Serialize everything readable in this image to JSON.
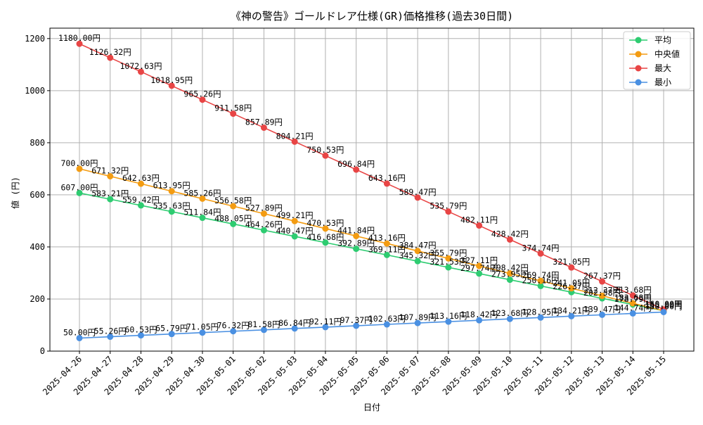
{
  "chart_data": {
    "type": "line",
    "title": "《神の警告》ゴールドレア仕様(GR)価格推移(過去30日間)",
    "xlabel": "日付",
    "ylabel": "値 (円)",
    "ylim": [
      0,
      1240
    ],
    "yticks": [
      0,
      200,
      400,
      600,
      800,
      1000,
      1200
    ],
    "grid": true,
    "legend_position": "top-right",
    "categories": [
      "2025-04-26",
      "2025-04-27",
      "2025-04-28",
      "2025-04-29",
      "2025-04-30",
      "2025-05-01",
      "2025-05-02",
      "2025-05-03",
      "2025-05-04",
      "2025-05-05",
      "2025-05-06",
      "2025-05-07",
      "2025-05-08",
      "2025-05-09",
      "2025-05-10",
      "2025-05-11",
      "2025-05-12",
      "2025-05-13",
      "2025-05-14",
      "2025-05-15"
    ],
    "series": [
      {
        "name": "平均",
        "color": "#2ecc71",
        "values": [
          607.0,
          583.21,
          559.42,
          535.63,
          511.84,
          488.05,
          464.26,
          440.47,
          416.68,
          392.89,
          369.11,
          345.32,
          321.53,
          297.74,
          273.95,
          250.16,
          226.37,
          202.58,
          178.79,
          155.0
        ]
      },
      {
        "name": "中央値",
        "color": "#f39c12",
        "values": [
          700.0,
          671.32,
          642.63,
          613.95,
          585.26,
          556.58,
          527.89,
          499.21,
          470.53,
          441.84,
          413.16,
          384.47,
          355.79,
          327.11,
          298.42,
          269.74,
          241.05,
          212.37,
          183.68,
          155.0
        ]
      },
      {
        "name": "最大",
        "color": "#e84545",
        "values": [
          1180.0,
          1126.32,
          1072.63,
          1018.95,
          965.26,
          911.58,
          857.89,
          804.21,
          750.53,
          696.84,
          643.16,
          589.47,
          535.79,
          482.11,
          428.42,
          374.74,
          321.05,
          267.37,
          213.68,
          160.0
        ]
      },
      {
        "name": "最小",
        "color": "#4a90e2",
        "values": [
          50.0,
          55.26,
          60.53,
          65.79,
          71.05,
          76.32,
          81.58,
          86.84,
          92.11,
          97.37,
          102.63,
          107.89,
          113.16,
          118.42,
          123.68,
          128.95,
          134.21,
          139.47,
          144.74,
          150.0
        ]
      }
    ],
    "label_suffix": "円"
  }
}
